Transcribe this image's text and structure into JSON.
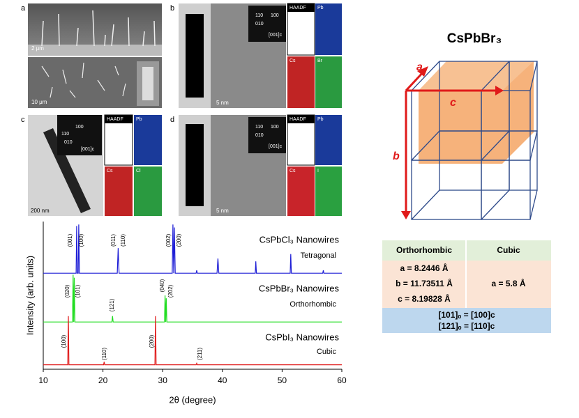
{
  "panels": {
    "a": {
      "label": "a",
      "scale_bars": [
        "2 μm",
        "10 μm"
      ]
    },
    "b": {
      "label": "b",
      "scale_bars": [
        "5 nm"
      ],
      "diffraction": [
        "110",
        "100",
        "010",
        "[001]c"
      ],
      "maps": [
        "HAADF",
        "Pb",
        "Cs",
        "Br"
      ]
    },
    "c": {
      "label": "c",
      "scale_bars": [
        "200 nm"
      ],
      "diffraction": [
        "100",
        "110",
        "010",
        "[001]c"
      ],
      "maps": [
        "HAADF",
        "Pb",
        "Cs",
        "Cl"
      ]
    },
    "d": {
      "label": "d",
      "scale_bars": [
        "5 nm"
      ],
      "diffraction": [
        "110",
        "100",
        "010",
        "[001]c"
      ],
      "maps": [
        "HAADF",
        "Pb",
        "Cs",
        "I"
      ]
    }
  },
  "chart_data": {
    "type": "line",
    "x_label": "2θ (degree)",
    "y_label": "Intensity (arb. units)",
    "xlim": [
      10,
      60
    ],
    "xticks": [
      10,
      20,
      30,
      40,
      50,
      60
    ],
    "ylim": [
      0,
      100
    ],
    "series": [
      {
        "name": "CsPbCl₃ Nanowires",
        "phase": "Tetragonal",
        "color": "#1f1fd6",
        "peak_labels": [
          "(001)",
          "(100)",
          "(011)",
          "(110)",
          "(002)",
          "(200)"
        ],
        "x": [
          10,
          15.5,
          15.6,
          15.7,
          15.85,
          15.95,
          16.05,
          22.4,
          22.55,
          22.7,
          31.6,
          31.72,
          31.84,
          31.96,
          32.1,
          35.6,
          35.7,
          35.8,
          39.1,
          39.25,
          39.4,
          45.5,
          45.6,
          45.7,
          51.35,
          51.45,
          51.55,
          56.8,
          56.9,
          57.0,
          60
        ],
        "values": [
          65,
          65,
          97,
          65,
          65,
          98,
          65,
          65,
          82,
          65,
          65,
          98,
          65,
          96,
          65,
          65,
          67,
          65,
          65,
          75,
          65,
          65,
          73,
          65,
          65,
          78,
          65,
          65,
          67,
          65,
          65
        ]
      },
      {
        "name": "CsPbBr₃ Nanowires",
        "phase": "Orthorhombic",
        "color": "#22dd22",
        "peak_labels": [
          "(020)",
          "(101)",
          "(121)",
          "(040)",
          "(202)"
        ],
        "x": [
          10,
          14.9,
          15.0,
          15.1,
          15.2,
          15.3,
          21.5,
          21.6,
          21.7,
          30.3,
          30.4,
          30.5,
          30.6,
          30.7,
          60
        ],
        "values": [
          32,
          32,
          64,
          32,
          62,
          32,
          32,
          36,
          32,
          32,
          50,
          32,
          48,
          32,
          32
        ]
      },
      {
        "name": "CsPbI₃ Nanowires",
        "phase": "Cubic",
        "color": "#e01a1a",
        "peak_labels": [
          "(100)",
          "(110)",
          "(200)",
          "(211)"
        ],
        "x": [
          10,
          14.1,
          14.2,
          14.3,
          20.1,
          20.2,
          20.3,
          28.7,
          28.8,
          28.9,
          35.6,
          35.7,
          35.8,
          60
        ],
        "values": [
          3,
          3,
          36,
          3,
          3,
          5,
          3,
          3,
          36,
          3,
          3,
          4,
          3,
          3
        ]
      }
    ]
  },
  "structure": {
    "title": "CsPbBr₃",
    "axes": [
      "a",
      "c",
      "b"
    ]
  },
  "table": {
    "header": [
      "Orthorhombic",
      "Cubic"
    ],
    "orthorhombic": [
      "a = 8.2446 Å",
      "b = 11.73511 Å",
      "c = 8.19828 Å"
    ],
    "cubic": "a = 5.8 Å",
    "relations": [
      "[101]ₒ = [100]c",
      "[121]ₒ = [110]c"
    ]
  }
}
